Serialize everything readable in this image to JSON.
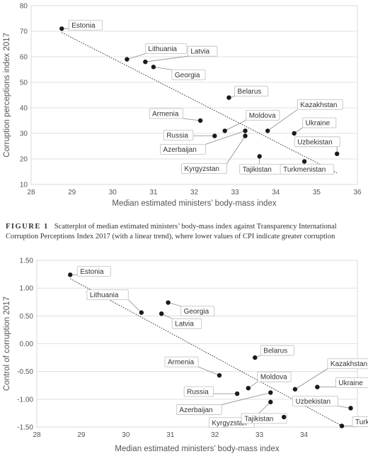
{
  "caption": {
    "figure_label": "FIGURE 1",
    "text": "Scatterplot of median estimated ministers’ body-mass index against Transparency International Corruption Perceptions Index 2017 (with a linear trend), where lower values of CPI indicate greater corruption"
  },
  "chart_data": [
    {
      "type": "scatter",
      "xlabel": "Median estimated ministers’ body-mass index",
      "ylabel": "Corruption perceptions index 2017",
      "xlim": [
        28,
        36
      ],
      "ylim": [
        10,
        80
      ],
      "xticks": [
        "28",
        "29",
        "30",
        "31",
        "32",
        "33",
        "34",
        "35",
        "36"
      ],
      "yticks": [
        "10",
        "20",
        "30",
        "40",
        "50",
        "60",
        "70",
        "80"
      ],
      "grid": "horizontal",
      "trendline": {
        "type": "linear",
        "x": [
          28.75,
          35.5
        ],
        "y": [
          69.5,
          14.5
        ]
      },
      "points": [
        {
          "label": "Estonia",
          "x": 28.75,
          "y": 71
        },
        {
          "label": "Lithuania",
          "x": 30.35,
          "y": 59
        },
        {
          "label": "Latvia",
          "x": 30.8,
          "y": 58
        },
        {
          "label": "Georgia",
          "x": 31.0,
          "y": 56
        },
        {
          "label": "Belarus",
          "x": 32.85,
          "y": 44
        },
        {
          "label": "Armenia",
          "x": 32.15,
          "y": 35
        },
        {
          "label": "Kazakhstan",
          "x": 33.8,
          "y": 31
        },
        {
          "label": "Moldova",
          "x": 32.75,
          "y": 31
        },
        {
          "label": "Ukraine",
          "x": 34.45,
          "y": 30
        },
        {
          "label": "Russia",
          "x": 32.5,
          "y": 29
        },
        {
          "label": "Azerbaijan",
          "x": 33.25,
          "y": 31
        },
        {
          "label": "Kyrgyzstan",
          "x": 33.25,
          "y": 29
        },
        {
          "label": "Uzbekistan",
          "x": 35.5,
          "y": 22
        },
        {
          "label": "Tajikistan",
          "x": 33.6,
          "y": 21
        },
        {
          "label": "Turkmenistan",
          "x": 34.7,
          "y": 19
        }
      ]
    },
    {
      "type": "scatter",
      "xlabel": "Median estimated ministers’ body-mass index",
      "ylabel": "Control of corruption 2017",
      "xlim": [
        28,
        35.2
      ],
      "ylim": [
        -1.5,
        1.5
      ],
      "xticks": [
        "28",
        "29",
        "30",
        "31",
        "32",
        "33",
        "34"
      ],
      "yticks": [
        "1.50",
        "1.00",
        "0.50",
        "0.00",
        "-0.50",
        "-1.00",
        "-1.50"
      ],
      "grid": "horizontal",
      "trendline": {
        "type": "linear",
        "x": [
          28.75,
          34.9
        ],
        "y": [
          1.17,
          -1.5
        ]
      },
      "points": [
        {
          "label": "Estonia",
          "x": 28.75,
          "y": 1.24
        },
        {
          "label": "Lithuania",
          "x": 30.35,
          "y": 0.56
        },
        {
          "label": "Latvia",
          "x": 30.8,
          "y": 0.54
        },
        {
          "label": "Georgia",
          "x": 30.95,
          "y": 0.74
        },
        {
          "label": "Belarus",
          "x": 32.9,
          "y": -0.25
        },
        {
          "label": "Armenia",
          "x": 32.1,
          "y": -0.57
        },
        {
          "label": "Moldova",
          "x": 32.75,
          "y": -0.8
        },
        {
          "label": "Kazakhstan",
          "x": 33.8,
          "y": -0.82
        },
        {
          "label": "Ukraine",
          "x": 34.3,
          "y": -0.78
        },
        {
          "label": "Russia",
          "x": 32.5,
          "y": -0.9
        },
        {
          "label": "Azerbaijan",
          "x": 33.25,
          "y": -0.88
        },
        {
          "label": "Kyrgyzstan",
          "x": 33.25,
          "y": -1.05
        },
        {
          "label": "Tajikistan",
          "x": 33.55,
          "y": -1.32
        },
        {
          "label": "Uzbekistan",
          "x": 35.05,
          "y": -1.16
        },
        {
          "label": "Turkmenistan",
          "x": 34.85,
          "y": -1.48
        }
      ]
    }
  ]
}
